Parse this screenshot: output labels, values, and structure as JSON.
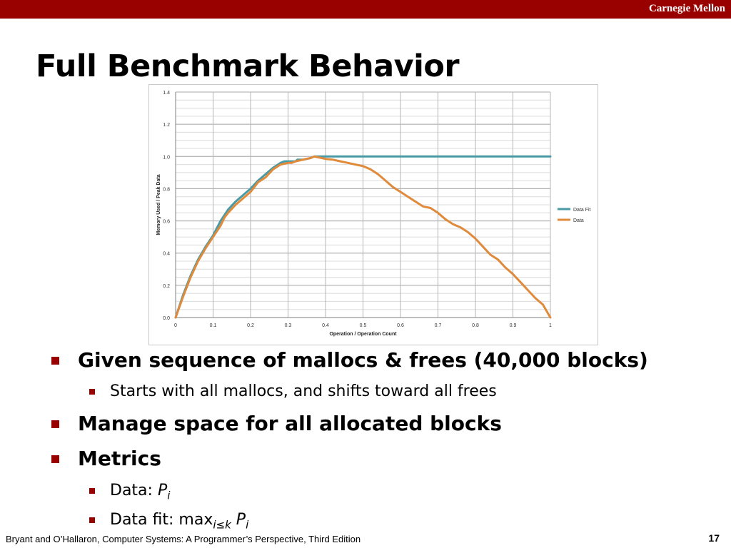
{
  "header": {
    "brand": "Carnegie Mellon"
  },
  "slide": {
    "title": "Full Benchmark Behavior"
  },
  "chart_data": {
    "type": "line",
    "title": "",
    "xlabel": "Operation / Operation Count",
    "ylabel": "Memory Used / Peak Data",
    "xlim": [
      0,
      1
    ],
    "ylim": [
      0,
      1.4
    ],
    "xticks": [
      "0",
      "0.1",
      "0.2",
      "0.3",
      "0.4",
      "0.5",
      "0.6",
      "0.7",
      "0.8",
      "0.9",
      "1"
    ],
    "yticks": [
      "0.0",
      "0.2",
      "0.4",
      "0.6",
      "0.8",
      "1.0",
      "1.2",
      "1.4"
    ],
    "grid": true,
    "legend": "right",
    "series": [
      {
        "name": "Data Fit",
        "color": "#4a9aa5",
        "x": [
          0,
          0.02,
          0.04,
          0.06,
          0.08,
          0.1,
          0.12,
          0.14,
          0.16,
          0.18,
          0.2,
          0.22,
          0.24,
          0.26,
          0.28,
          0.29,
          0.3,
          0.32,
          0.325,
          0.34,
          0.36,
          0.37,
          0.38,
          1.0
        ],
        "y": [
          0,
          0.14,
          0.26,
          0.36,
          0.44,
          0.51,
          0.6,
          0.67,
          0.72,
          0.76,
          0.8,
          0.85,
          0.89,
          0.93,
          0.96,
          0.97,
          0.97,
          0.97,
          0.98,
          0.98,
          0.99,
          1.0,
          1.0,
          1.0
        ]
      },
      {
        "name": "Data",
        "color": "#e08a3c",
        "x": [
          0,
          0.02,
          0.04,
          0.06,
          0.08,
          0.1,
          0.12,
          0.13,
          0.14,
          0.16,
          0.18,
          0.2,
          0.22,
          0.24,
          0.26,
          0.28,
          0.3,
          0.31,
          0.32,
          0.34,
          0.36,
          0.37,
          0.38,
          0.4,
          0.42,
          0.44,
          0.46,
          0.48,
          0.5,
          0.52,
          0.54,
          0.56,
          0.58,
          0.6,
          0.62,
          0.64,
          0.66,
          0.68,
          0.7,
          0.72,
          0.74,
          0.76,
          0.78,
          0.8,
          0.82,
          0.84,
          0.86,
          0.88,
          0.9,
          0.92,
          0.94,
          0.96,
          0.98,
          1.0
        ],
        "y": [
          0,
          0.13,
          0.25,
          0.35,
          0.43,
          0.5,
          0.57,
          0.62,
          0.65,
          0.7,
          0.74,
          0.78,
          0.84,
          0.87,
          0.92,
          0.95,
          0.96,
          0.96,
          0.97,
          0.98,
          0.99,
          1.0,
          0.995,
          0.985,
          0.98,
          0.97,
          0.96,
          0.95,
          0.94,
          0.92,
          0.89,
          0.85,
          0.81,
          0.78,
          0.75,
          0.72,
          0.69,
          0.68,
          0.65,
          0.61,
          0.58,
          0.56,
          0.53,
          0.49,
          0.44,
          0.39,
          0.36,
          0.31,
          0.27,
          0.22,
          0.17,
          0.12,
          0.08,
          0.0
        ]
      }
    ]
  },
  "bullets": [
    {
      "level": 1,
      "text": "Given sequence of mallocs & frees (40,000 blocks)"
    },
    {
      "level": 2,
      "text": "Starts with all mallocs, and shifts toward all frees"
    },
    {
      "level": 1,
      "text": "Manage space for all allocated blocks"
    },
    {
      "level": 1,
      "text": "Metrics"
    },
    {
      "level": 2,
      "prefix": "Data: ",
      "var": "P",
      "sub": "i"
    },
    {
      "level": 2,
      "prefix": "Data fit: max",
      "msub": "i≤k",
      "space": " ",
      "var": "P",
      "sub": "i"
    }
  ],
  "footer": {
    "citation": "Bryant and O’Hallaron, Computer Systems: A Programmer’s Perspective, Third Edition",
    "page": "17"
  }
}
